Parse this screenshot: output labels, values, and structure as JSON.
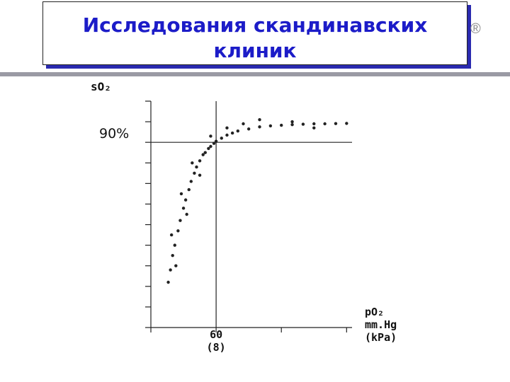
{
  "header": {
    "title": "Исследования скандинавских клиник",
    "mark": "®"
  },
  "chart_data": {
    "type": "scatter",
    "y_label": "sO₂",
    "x_label": "pO₂\nmm.Hg\n(kPa)",
    "xlim": [
      0,
      185
    ],
    "ylim": [
      0,
      110
    ],
    "xticks": [
      {
        "value": 60,
        "label": "60\n(8)"
      }
    ],
    "yticks": [
      {
        "value": 90,
        "label": "90%"
      }
    ],
    "xtick_marks": [
      0,
      60,
      120,
      180
    ],
    "ytick_marks": [
      0,
      10,
      20,
      30,
      40,
      50,
      60,
      70,
      80,
      90,
      100,
      110
    ],
    "color": "#222222",
    "x": [
      16,
      18,
      20,
      22,
      25,
      27,
      30,
      32,
      35,
      37,
      40,
      42,
      45,
      48,
      50,
      53,
      55,
      58,
      60,
      65,
      70,
      75,
      80,
      90,
      100,
      110,
      120,
      130,
      140,
      150,
      160,
      170,
      180,
      19,
      23,
      28,
      33,
      38,
      45,
      55,
      70,
      100,
      130,
      85,
      150
    ],
    "values": [
      22,
      28,
      35,
      40,
      47,
      52,
      58,
      62,
      67,
      71,
      75,
      78,
      81,
      84,
      85,
      87,
      88,
      89.5,
      90.5,
      92,
      93.5,
      94.5,
      95.5,
      96.5,
      97.5,
      98,
      98.3,
      98.6,
      98.8,
      99,
      99,
      99.1,
      99.2,
      45,
      30,
      65,
      55,
      80,
      74,
      93,
      97,
      101,
      100,
      99,
      97
    ]
  }
}
